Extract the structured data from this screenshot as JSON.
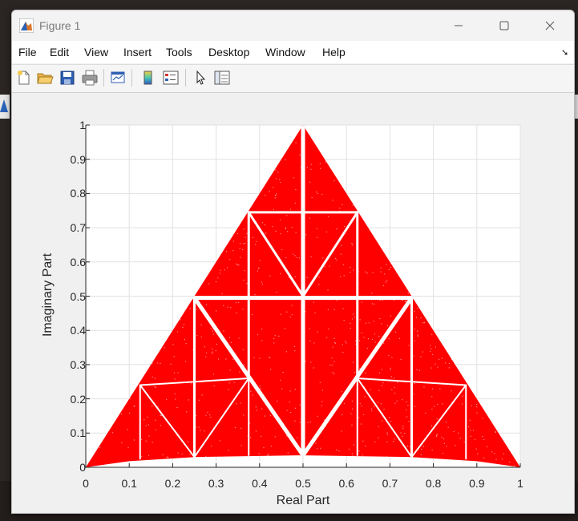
{
  "window": {
    "title": "Figure 1",
    "menu": [
      "File",
      "Edit",
      "View",
      "Insert",
      "Tools",
      "Desktop",
      "Window",
      "Help"
    ],
    "toolbar_icons": [
      "new-figure-icon",
      "open-file-icon",
      "save-icon",
      "print-icon",
      "link-plot-icon",
      "insert-colorbar-icon",
      "insert-legend-icon",
      "edit-plot-pointer-icon",
      "property-inspector-icon"
    ]
  },
  "chart_data": {
    "type": "scatter",
    "title": "",
    "xlabel": "Real Part",
    "ylabel": "Imaginary Part",
    "xlim": [
      0,
      1
    ],
    "ylim": [
      0,
      1
    ],
    "x_ticks": [
      "0",
      "0.1",
      "0.2",
      "0.3",
      "0.4",
      "0.5",
      "0.6",
      "0.7",
      "0.8",
      "0.9",
      "1"
    ],
    "y_ticks": [
      "0",
      "0.1",
      "0.2",
      "0.3",
      "0.4",
      "0.5",
      "0.6",
      "0.7",
      "0.8",
      "0.9",
      "1"
    ],
    "grid": true,
    "marker_color": "#ff0000",
    "outline": {
      "apex": [
        0.5,
        1.0
      ],
      "left_base": [
        0.0,
        0.0
      ],
      "right_base": [
        1.0,
        0.0
      ],
      "base_curve": [
        [
          0.0,
          0.0
        ],
        [
          0.1,
          0.018
        ],
        [
          0.25,
          0.03
        ],
        [
          0.5,
          0.035
        ],
        [
          0.75,
          0.03
        ],
        [
          0.9,
          0.018
        ],
        [
          1.0,
          0.0
        ]
      ]
    },
    "gaps": [
      [
        [
          0.5,
          1.0
        ],
        [
          0.5,
          0.035
        ]
      ],
      [
        [
          0.25,
          0.495
        ],
        [
          0.5,
          0.035
        ]
      ],
      [
        [
          0.75,
          0.495
        ],
        [
          0.5,
          0.035
        ]
      ],
      [
        [
          0.25,
          0.495
        ],
        [
          0.75,
          0.495
        ]
      ],
      [
        [
          0.25,
          0.495
        ],
        [
          0.25,
          0.03
        ]
      ],
      [
        [
          0.75,
          0.495
        ],
        [
          0.75,
          0.03
        ]
      ],
      [
        [
          0.375,
          0.745
        ],
        [
          0.375,
          0.26
        ]
      ],
      [
        [
          0.625,
          0.745
        ],
        [
          0.625,
          0.26
        ]
      ],
      [
        [
          0.375,
          0.745
        ],
        [
          0.625,
          0.745
        ]
      ],
      [
        [
          0.375,
          0.745
        ],
        [
          0.5,
          0.5
        ]
      ],
      [
        [
          0.625,
          0.745
        ],
        [
          0.5,
          0.5
        ]
      ],
      [
        [
          0.125,
          0.24
        ],
        [
          0.25,
          0.03
        ]
      ],
      [
        [
          0.375,
          0.26
        ],
        [
          0.25,
          0.03
        ]
      ],
      [
        [
          0.625,
          0.26
        ],
        [
          0.75,
          0.03
        ]
      ],
      [
        [
          0.875,
          0.24
        ],
        [
          0.75,
          0.03
        ]
      ],
      [
        [
          0.125,
          0.24
        ],
        [
          0.375,
          0.26
        ]
      ],
      [
        [
          0.625,
          0.26
        ],
        [
          0.875,
          0.24
        ]
      ],
      [
        [
          0.125,
          0.24
        ],
        [
          0.125,
          0.025
        ]
      ],
      [
        [
          0.875,
          0.24
        ],
        [
          0.875,
          0.025
        ]
      ],
      [
        [
          0.375,
          0.26
        ],
        [
          0.375,
          0.035
        ]
      ],
      [
        [
          0.625,
          0.26
        ],
        [
          0.625,
          0.035
        ]
      ]
    ]
  }
}
